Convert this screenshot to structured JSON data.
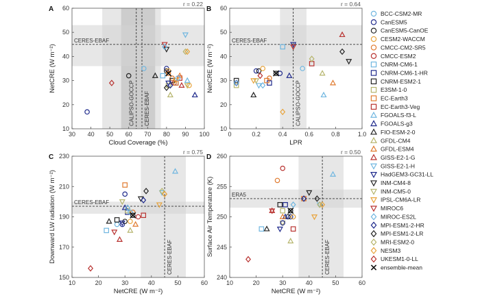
{
  "chart_data": [
    {
      "type": "scatter",
      "panel": "A",
      "r_label": "r = 0.22",
      "xlabel": "Cloud Coverage (%)",
      "ylabel": "NetCRE (W m⁻²)",
      "xlim": [
        30,
        100
      ],
      "ylim": [
        10,
        60
      ],
      "xticks": [
        "30",
        "40",
        "50",
        "60",
        "70",
        "80",
        "90",
        "100"
      ],
      "yticks": [
        "10",
        "20",
        "30",
        "40",
        "50",
        "60"
      ],
      "hband": {
        "range": [
          36,
          53
        ],
        "ref": 45,
        "label": "CERES-EBAF"
      },
      "vband": {
        "range": [
          46,
          77
        ],
        "ref": 67,
        "label": "CERES-EBAF"
      },
      "vband2": {
        "range": [
          56,
          74
        ],
        "ref": 64,
        "label": "CALIPSO-GOCCP"
      },
      "points": [
        [
          68,
          35
        ],
        [
          80,
          35
        ],
        [
          80,
          34
        ],
        [
          81,
          34
        ],
        [
          83,
          31
        ],
        [
          84,
          29
        ],
        [
          78,
          32
        ],
        [
          85,
          29
        ],
        [
          83,
          30
        ],
        [
          81,
          28
        ],
        [
          85,
          29
        ],
        [
          87,
          31
        ],
        [
          91,
          30
        ],
        [
          95,
          24
        ],
        [
          74,
          32
        ],
        [
          82,
          24
        ],
        [
          87,
          32
        ],
        [
          88,
          28
        ],
        [
          90,
          49
        ],
        [
          81,
          29
        ],
        [
          80,
          43
        ],
        [
          91,
          28
        ],
        [
          85,
          30
        ],
        [
          79,
          45
        ],
        [
          79,
          44
        ],
        [
          82,
          28
        ],
        [
          80,
          27
        ],
        [
          90,
          42
        ],
        [
          91,
          42
        ],
        [
          51,
          29
        ],
        [
          86,
          31
        ],
        [
          38,
          17
        ],
        [
          60,
          32
        ],
        [
          92,
          28
        ],
        [
          81,
          33
        ]
      ]
    },
    {
      "type": "scatter",
      "panel": "B",
      "r_label": "r = 0.64",
      "xlabel": "LPR",
      "ylabel": "NetCRE (W m⁻²)",
      "xlim": [
        0,
        1
      ],
      "ylim": [
        10,
        60
      ],
      "xticks": [
        "0",
        "0.2",
        "0.4",
        "0.6",
        "0.8",
        "1.0"
      ],
      "yticks": [
        "10",
        "20",
        "30",
        "40",
        "50",
        "60"
      ],
      "hband": {
        "range": [
          36,
          53
        ],
        "ref": 45,
        "label": "CERES-EBAF"
      },
      "vband": {
        "range": [
          0.38,
          0.58
        ],
        "ref": 0.48,
        "label": "CALIPSO-GOCCP"
      },
      "points": [
        [
          0.55,
          35
        ],
        [
          0.2,
          34
        ],
        [
          0.22,
          34
        ],
        [
          0.25,
          35
        ],
        [
          0.3,
          31
        ],
        [
          0.05,
          29
        ],
        [
          0.4,
          44
        ],
        [
          0.3,
          29
        ],
        [
          0.05,
          30
        ],
        [
          0.05,
          28
        ],
        [
          0.28,
          30
        ],
        [
          0.62,
          37
        ],
        [
          0.71,
          24
        ],
        [
          0.45,
          32
        ],
        [
          0.18,
          24
        ],
        [
          0.7,
          33
        ],
        [
          0.78,
          29
        ],
        [
          0.85,
          49
        ],
        [
          0.22,
          28
        ],
        [
          0.48,
          45
        ],
        [
          0.9,
          38
        ],
        [
          0.2,
          30
        ],
        [
          0.18,
          30
        ],
        [
          0.48,
          44
        ],
        [
          0.25,
          28
        ],
        [
          0.05,
          29
        ],
        [
          0.85,
          42
        ],
        [
          0.62,
          39
        ],
        [
          0.4,
          17
        ],
        [
          0.23,
          32
        ],
        [
          0.05,
          29
        ],
        [
          0.38,
          33
        ],
        [
          0.35,
          33
        ]
      ]
    },
    {
      "type": "scatter",
      "panel": "C",
      "r_label": "r = 0.75",
      "xlabel": "NetCRE (W m⁻²)",
      "ylabel": "Downward LW radiation (W m⁻²)",
      "xlim": [
        10,
        60
      ],
      "ylim": [
        150,
        230
      ],
      "xticks": [
        "10",
        "20",
        "30",
        "40",
        "50",
        "60"
      ],
      "yticks": [
        "150",
        "170",
        "190",
        "210",
        "230"
      ],
      "hband": {
        "range": [
          192,
          200
        ],
        "ref": 197,
        "label": "CERES-EBAF"
      },
      "vband": {
        "range": [
          36,
          53
        ],
        "ref": 45,
        "label": "CERES-EBAF"
      },
      "points": [
        [
          27,
          185
        ],
        [
          29,
          185
        ],
        [
          30,
          187
        ],
        [
          32,
          187
        ],
        [
          33,
          193
        ],
        [
          35,
          190
        ],
        [
          23,
          181
        ],
        [
          31,
          193
        ],
        [
          27,
          188
        ],
        [
          31,
          194
        ],
        [
          30,
          211
        ],
        [
          37,
          191
        ],
        [
          49,
          220
        ],
        [
          30,
          196
        ],
        [
          24,
          187
        ],
        [
          32,
          181
        ],
        [
          34,
          185
        ],
        [
          28,
          175
        ],
        [
          44,
          206
        ],
        [
          29,
          186
        ],
        [
          36,
          202
        ],
        [
          29,
          200
        ],
        [
          43,
          198
        ],
        [
          26,
          180
        ],
        [
          31,
          196
        ],
        [
          37,
          201
        ],
        [
          38,
          207
        ],
        [
          44,
          207
        ],
        [
          45,
          205
        ],
        [
          17,
          156
        ],
        [
          32,
          193
        ],
        [
          30,
          205
        ],
        [
          33,
          191
        ]
      ]
    },
    {
      "type": "scatter",
      "panel": "D",
      "r_label": "r = 0.50",
      "xlabel": "NetCRE (W m⁻²)",
      "ylabel": "Surface Air Temperature (K)",
      "xlim": [
        10,
        60
      ],
      "ylim": [
        240,
        260
      ],
      "xticks": [
        "10",
        "20",
        "30",
        "40",
        "50",
        "60"
      ],
      "yticks": [
        "240",
        "245",
        "250",
        "255",
        "260"
      ],
      "hband": {
        "range": [
          251.5,
          254.5
        ],
        "ref": 253,
        "label": "ERA5"
      },
      "vband": {
        "range": [
          36,
          53
        ],
        "ref": 45,
        "label": "CERES-EBAF"
      },
      "points": [
        [
          34,
          250
        ],
        [
          33,
          250
        ],
        [
          32,
          250
        ],
        [
          34,
          250
        ],
        [
          28,
          256
        ],
        [
          30,
          258
        ],
        [
          22,
          248
        ],
        [
          31,
          252
        ],
        [
          29,
          252
        ],
        [
          30,
          251
        ],
        [
          38,
          253
        ],
        [
          34,
          248
        ],
        [
          49,
          257
        ],
        [
          31,
          250
        ],
        [
          24,
          248
        ],
        [
          33,
          246
        ],
        [
          30,
          250
        ],
        [
          26,
          251
        ],
        [
          44,
          252
        ],
        [
          29,
          248
        ],
        [
          40,
          254
        ],
        [
          30,
          249
        ],
        [
          42,
          250
        ],
        [
          26,
          251
        ],
        [
          34,
          252
        ],
        [
          38,
          253
        ],
        [
          43,
          253
        ],
        [
          44,
          252
        ],
        [
          45,
          252
        ],
        [
          17,
          243
        ],
        [
          33,
          251
        ],
        [
          30,
          249
        ],
        [
          33,
          251
        ]
      ]
    }
  ],
  "legend": [
    {
      "label": "BCC-CSM2-MR",
      "marker": "circle",
      "color": "#6fb6e0"
    },
    {
      "label": "CanESM5",
      "marker": "circle",
      "color": "#1f2a8c"
    },
    {
      "label": "CanESM5-CanOE",
      "marker": "circle",
      "color": "#222222"
    },
    {
      "label": "CESM2-WACCM",
      "marker": "circle",
      "color": "#e8a33a"
    },
    {
      "label": "CMCC-CM2-SR5",
      "marker": "circle",
      "color": "#e07a2e"
    },
    {
      "label": "CMCC-ESM2",
      "marker": "circle",
      "color": "#b8312f"
    },
    {
      "label": "CNRM-CM6-1",
      "marker": "square",
      "color": "#6fb6e0"
    },
    {
      "label": "CNRM-CM6-1-HR",
      "marker": "square",
      "color": "#1f2a8c"
    },
    {
      "label": "CNRM-ESM2-1",
      "marker": "square",
      "color": "#222222"
    },
    {
      "label": "E3SM-1-0",
      "marker": "square",
      "color": "#b5b46b"
    },
    {
      "label": "EC-Earth3",
      "marker": "square",
      "color": "#e07a2e"
    },
    {
      "label": "EC-Earth3-Veg",
      "marker": "square",
      "color": "#b8312f"
    },
    {
      "label": "FGOALS-f3-L",
      "marker": "triangle",
      "color": "#6fb6e0"
    },
    {
      "label": "FGOALS-g3",
      "marker": "triangle",
      "color": "#1f2a8c"
    },
    {
      "label": "FIO-ESM-2-0",
      "marker": "triangle",
      "color": "#222222"
    },
    {
      "label": "GFDL-CM4",
      "marker": "triangle",
      "color": "#b5b46b"
    },
    {
      "label": "GFDL-ESM4",
      "marker": "triangle",
      "color": "#e07a2e"
    },
    {
      "label": "GISS-E2-1-G",
      "marker": "triangle",
      "color": "#b8312f"
    },
    {
      "label": "GISS-E2-1-H",
      "marker": "tridown",
      "color": "#6fb6e0"
    },
    {
      "label": "HadGEM3-GC31-LL",
      "marker": "tridown",
      "color": "#1f2a8c"
    },
    {
      "label": "INM-CM4-8",
      "marker": "tridown",
      "color": "#222222"
    },
    {
      "label": "INM-CM5-0",
      "marker": "tridown",
      "color": "#b5b46b"
    },
    {
      "label": "IPSL-CM6A-LR",
      "marker": "tridown",
      "color": "#e8a33a"
    },
    {
      "label": "MIROC6",
      "marker": "tridown",
      "color": "#b8312f"
    },
    {
      "label": "MIROC-ES2L",
      "marker": "diamond",
      "color": "#6fb6e0"
    },
    {
      "label": "MPI-ESM1-2-HR",
      "marker": "diamond",
      "color": "#1f2a8c"
    },
    {
      "label": "MPI-ESM1-2-LR",
      "marker": "diamond",
      "color": "#222222"
    },
    {
      "label": "MRI-ESM2-0",
      "marker": "diamond",
      "color": "#b5b46b"
    },
    {
      "label": "NESM3",
      "marker": "diamond",
      "color": "#e8a33a"
    },
    {
      "label": "UKESM1-0-LL",
      "marker": "diamond",
      "color": "#b8312f"
    },
    {
      "label": "ensemble-mean",
      "marker": "x",
      "color": "#111111"
    }
  ]
}
